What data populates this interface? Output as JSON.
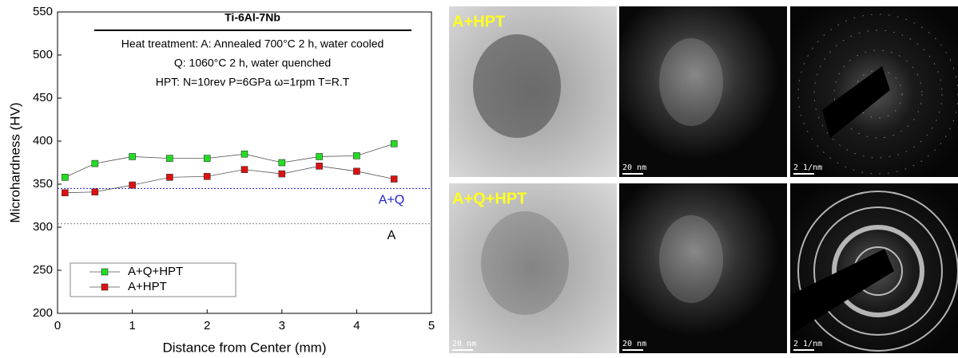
{
  "chart_data": {
    "type": "line",
    "xlabel": "Distance from Center (mm)",
    "ylabel": "Microhardness (HV)",
    "xlim": [
      0,
      5
    ],
    "xticks": [
      0,
      1,
      2,
      3,
      4,
      5
    ],
    "ylim": [
      200,
      550
    ],
    "yticks": [
      200,
      250,
      300,
      350,
      400,
      450,
      500,
      550
    ],
    "x": [
      0.1,
      0.5,
      1,
      1.5,
      2,
      2.5,
      3,
      3.5,
      4,
      4.5
    ],
    "line_color": "#555555",
    "legend": "lower left",
    "series": [
      {
        "name": "A+Q+HPT",
        "color": "#22dd22",
        "values": [
          358,
          374,
          382,
          380,
          380,
          385,
          375,
          382,
          383,
          397
        ]
      },
      {
        "name": "A+HPT",
        "color": "#dd1111",
        "values": [
          340,
          341,
          349,
          358,
          359,
          367,
          362,
          371,
          365,
          356
        ]
      }
    ],
    "reference_lines": [
      {
        "label": "A+Q",
        "value": 345,
        "color": "#2222cc"
      },
      {
        "label": "A",
        "value": 304,
        "color": "#888888"
      }
    ],
    "annotation": {
      "title": "Ti-6Al-7Nb",
      "lines": [
        "Heat treatment: A: Annealed 700°C 2 h, water cooled",
        "Q: 1060°C 2 h, water quenched",
        "HPT:  N=10rev  P=6GPa  ω=1rpm  T=R.T"
      ]
    }
  },
  "micrographs": [
    {
      "label": "A+HPT",
      "scale_bars": [
        "20 nm",
        "2 1/nm"
      ]
    },
    {
      "label": "A+Q+HPT",
      "scale_bars": [
        "20 nm",
        "20 nm",
        "2 1/nm"
      ]
    }
  ]
}
